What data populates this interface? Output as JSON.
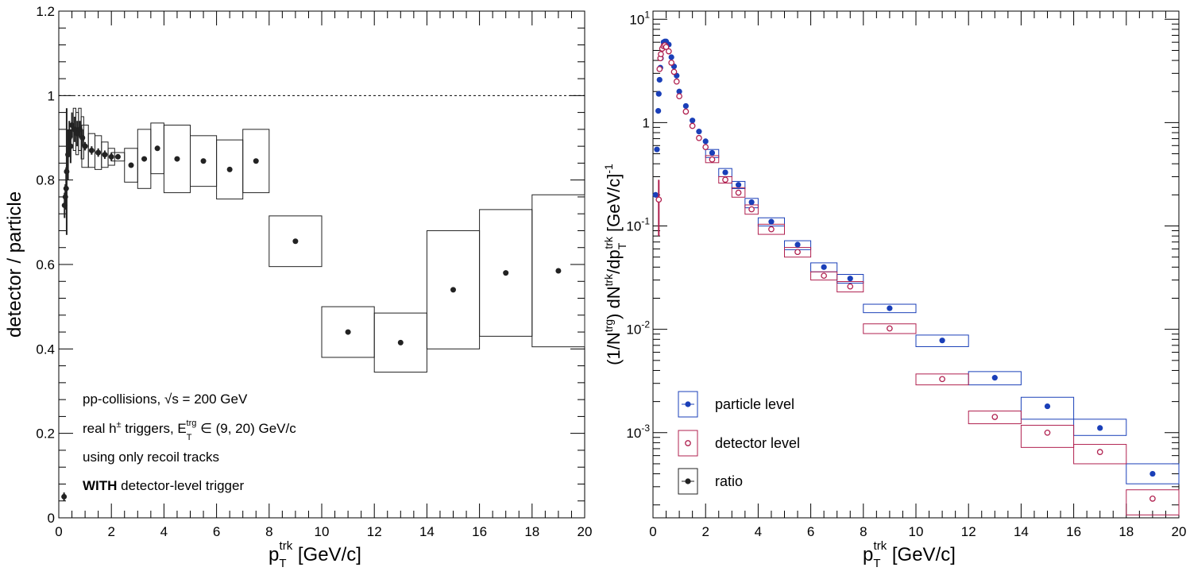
{
  "chart_data": [
    {
      "type": "scatter",
      "ylabel": "detector / particle",
      "xlabel": "p_T^trk [GeV/c]",
      "xlim": [
        0,
        20
      ],
      "ylim": [
        0,
        1.2
      ],
      "x_ticks": [
        "0",
        "2",
        "4",
        "6",
        "8",
        "10",
        "12",
        "14",
        "16",
        "18",
        "20"
      ],
      "y_ticks": [
        "0",
        "0.2",
        "0.4",
        "0.6",
        "0.8",
        "1",
        "1.2"
      ],
      "reference_line": 1,
      "annotations": {
        "line1": "pp-collisions, √s = 200 GeV",
        "line2_prefix": "real h",
        "line2_sup": "±",
        "line2_mid": " triggers, E",
        "line2_sub": "T",
        "line2_supb": "trg",
        "line2_suffix": " ∈ (9, 20) GeV/c",
        "line3": "using only recoil tracks",
        "line4_bold": "WITH",
        "line4_rest": " detector-level trigger"
      },
      "series": [
        {
          "name": "ratio",
          "color": "#222222",
          "x": [
            0.2,
            0.22,
            0.25,
            0.28,
            0.3,
            0.35,
            0.4,
            0.45,
            0.5,
            0.6,
            0.7,
            0.8,
            0.9,
            1.0,
            1.25,
            1.5,
            1.75,
            2.0,
            2.25,
            2.75,
            3.25,
            3.75,
            4.5,
            5.5,
            6.5,
            7.5,
            9.0,
            11.0,
            13.0,
            15.0,
            17.0,
            19.0
          ],
          "y": [
            0.05,
            0.74,
            0.76,
            0.78,
            0.82,
            0.86,
            0.9,
            0.88,
            0.93,
            0.92,
            0.91,
            0.92,
            0.9,
            0.88,
            0.87,
            0.865,
            0.86,
            0.855,
            0.855,
            0.835,
            0.85,
            0.875,
            0.85,
            0.845,
            0.825,
            0.845,
            0.655,
            0.44,
            0.415,
            0.54,
            0.58,
            0.585
          ],
          "xerr": [
            0.0,
            0.0,
            0.0,
            0.0,
            0.0,
            0.0,
            0.0,
            0.0,
            0.0,
            0.05,
            0.05,
            0.05,
            0.05,
            0.125,
            0.125,
            0.125,
            0.125,
            0.125,
            0.25,
            0.25,
            0.25,
            0.25,
            0.5,
            0.5,
            0.5,
            0.5,
            1.0,
            1.0,
            1.0,
            1.0,
            1.0,
            1.0
          ],
          "yerr": [
            0.01,
            0.03,
            0.03,
            0.05,
            0.15,
            0.06,
            0.04,
            0.04,
            0.03,
            0.03,
            0.03,
            0.02,
            0.02,
            0.01,
            0.01,
            0.01,
            0.01,
            0.01,
            0.005,
            0.005,
            0.005,
            0.005,
            0.005,
            0.005,
            0.005,
            0.005,
            0.005,
            0.005,
            0.005,
            0.005,
            0.005,
            0.005
          ],
          "syst": [
            0.0,
            0.0,
            0.0,
            0.0,
            0.0,
            0.0,
            0.0,
            0.0,
            0.05,
            0.05,
            0.05,
            0.05,
            0.05,
            0.05,
            0.04,
            0.04,
            0.03,
            0.02,
            0.01,
            0.04,
            0.07,
            0.06,
            0.08,
            0.06,
            0.07,
            0.075,
            0.06,
            0.06,
            0.07,
            0.14,
            0.15,
            0.18
          ]
        }
      ]
    },
    {
      "type": "scatter",
      "ylabel": "(1/N^trg) dN^trk/dp_T^trk [GeV/c]^-1",
      "xlabel": "p_T^trk [GeV/c]",
      "xlim": [
        0,
        20
      ],
      "ylim": [
        0.00015,
        12
      ],
      "y_scale": "log",
      "x_ticks": [
        "0",
        "2",
        "4",
        "6",
        "8",
        "10",
        "12",
        "14",
        "16",
        "18",
        "20"
      ],
      "legend_position": "bottom-left",
      "series": [
        {
          "name": "particle level",
          "color": "#1a3fb8",
          "marker": "filled-circle",
          "x": [
            0.1,
            0.15,
            0.2,
            0.22,
            0.25,
            0.28,
            0.3,
            0.35,
            0.4,
            0.45,
            0.5,
            0.6,
            0.7,
            0.8,
            0.9,
            1.0,
            1.25,
            1.5,
            1.75,
            2.0,
            2.25,
            2.75,
            3.25,
            3.75,
            4.5,
            5.5,
            6.5,
            7.5,
            9.0,
            11.0,
            13.0,
            15.0,
            17.0,
            19.0
          ],
          "y": [
            0.2,
            0.55,
            1.3,
            1.9,
            2.6,
            3.4,
            4.2,
            5.2,
            6.0,
            6.1,
            6.1,
            5.7,
            4.3,
            3.5,
            2.85,
            2.0,
            1.45,
            1.05,
            0.82,
            0.66,
            0.51,
            0.33,
            0.25,
            0.17,
            0.11,
            0.066,
            0.04,
            0.031,
            0.016,
            0.0078,
            0.0034,
            0.0018,
            0.00111,
            0.0004
          ],
          "xerr": [
            0.0,
            0.0,
            0.0,
            0.0,
            0.0,
            0.0,
            0.0,
            0.0,
            0.0,
            0.0,
            0.0,
            0.0,
            0.0,
            0.0,
            0.0,
            0.0,
            0.0,
            0.0,
            0.0,
            0.0,
            0.25,
            0.25,
            0.25,
            0.25,
            0.5,
            0.5,
            0.5,
            0.5,
            1.0,
            1.0,
            1.0,
            1.0,
            1.0,
            1.0
          ],
          "syst_lo": [
            0,
            0,
            0,
            0,
            0,
            0,
            0,
            0,
            0,
            0,
            0,
            0,
            0,
            0,
            0,
            0,
            0,
            0,
            0,
            0,
            0.46,
            0.3,
            0.23,
            0.15,
            0.1,
            0.059,
            0.036,
            0.028,
            0.0145,
            0.0068,
            0.0029,
            0.00135,
            0.00094,
            0.00032
          ],
          "syst_hi": [
            0,
            0,
            0,
            0,
            0,
            0,
            0,
            0,
            0,
            0,
            0,
            0,
            0,
            0,
            0,
            0,
            0,
            0,
            0,
            0,
            0.55,
            0.36,
            0.27,
            0.185,
            0.12,
            0.072,
            0.044,
            0.034,
            0.0175,
            0.0088,
            0.0039,
            0.0022,
            0.00135,
            0.0005
          ]
        },
        {
          "name": "detector level",
          "color": "#b0204f",
          "marker": "open-circle",
          "x": [
            0.22,
            0.25,
            0.28,
            0.3,
            0.35,
            0.4,
            0.45,
            0.5,
            0.6,
            0.7,
            0.8,
            0.9,
            1.0,
            1.25,
            1.5,
            1.75,
            2.0,
            2.25,
            2.75,
            3.25,
            3.75,
            4.5,
            5.5,
            6.5,
            7.5,
            9.0,
            11.0,
            13.0,
            15.0,
            17.0,
            19.0
          ],
          "y": [
            0.18,
            3.3,
            4.2,
            4.6,
            5.2,
            5.5,
            5.6,
            5.4,
            4.9,
            3.8,
            3.1,
            2.5,
            1.8,
            1.28,
            0.93,
            0.71,
            0.58,
            0.44,
            0.28,
            0.21,
            0.145,
            0.093,
            0.056,
            0.033,
            0.026,
            0.0102,
            0.0033,
            0.00142,
            0.001,
            0.00065,
            0.00023
          ],
          "yerr": [
            0.1,
            0,
            0,
            0,
            0,
            0,
            0,
            0,
            0,
            0,
            0,
            0,
            0,
            0,
            0,
            0,
            0,
            0,
            0,
            0,
            0,
            0,
            0,
            0,
            0,
            0,
            0,
            0,
            0,
            0,
            0
          ],
          "xerr": [
            0.0,
            0.0,
            0.0,
            0.0,
            0.0,
            0.0,
            0.0,
            0.0,
            0.0,
            0.0,
            0.0,
            0.0,
            0.0,
            0.0,
            0.0,
            0.0,
            0.0,
            0.25,
            0.25,
            0.25,
            0.25,
            0.5,
            0.5,
            0.5,
            0.5,
            1.0,
            1.0,
            1.0,
            1.0,
            1.0,
            1.0
          ],
          "syst_lo": [
            0,
            0,
            0,
            0,
            0,
            0,
            0,
            0,
            0,
            0,
            0,
            0,
            0,
            0,
            0,
            0,
            0,
            0.41,
            0.26,
            0.19,
            0.13,
            0.083,
            0.05,
            0.03,
            0.023,
            0.0091,
            0.0029,
            0.00122,
            0.00072,
            0.0005,
            0.00016
          ],
          "syst_hi": [
            0,
            0,
            0,
            0,
            0,
            0,
            0,
            0,
            0,
            0,
            0,
            0,
            0,
            0,
            0,
            0,
            0,
            0.48,
            0.3,
            0.235,
            0.16,
            0.104,
            0.062,
            0.036,
            0.029,
            0.0113,
            0.0037,
            0.00162,
            0.00118,
            0.00077,
            0.00028
          ]
        },
        {
          "name": "ratio",
          "color": "#222222",
          "marker": "filled-circle",
          "x": [],
          "y": []
        }
      ],
      "y_tick_labels": {
        "ten_base": "10",
        "e_pos": "1",
        "e_neg": "-1",
        "e_neg2": "-2",
        "e_neg3": "-3",
        "one": "1"
      }
    }
  ],
  "labels": {
    "xlabel_main": "p",
    "xlabel_sub": "T",
    "xlabel_sup": "trk",
    "xlabel_unit": " [GeV/c]",
    "right_ylabel_a": "(1/N",
    "right_ylabel_a_sup": "trg",
    "right_ylabel_b": ") dN",
    "right_ylabel_b_sup": "trk",
    "right_ylabel_c": "/dp",
    "right_ylabel_c_sub": "T",
    "right_ylabel_c_sup": "trk",
    "right_ylabel_d": " [GeV/c]",
    "right_ylabel_d_sup": "-1"
  }
}
